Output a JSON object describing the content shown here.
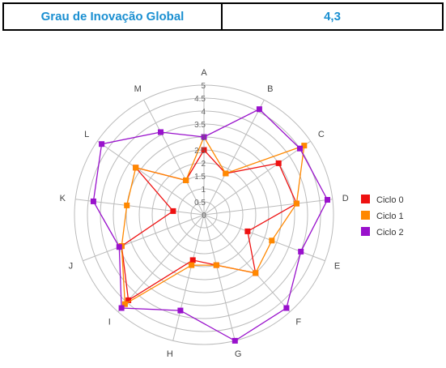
{
  "header": {
    "label": "Grau de Inovação Global",
    "value": "4,3"
  },
  "colors": {
    "header_text": "#1a8fd1",
    "grid": "#bbbbbb"
  },
  "chart_data": {
    "type": "radar",
    "categories": [
      "A",
      "B",
      "C",
      "D",
      "E",
      "F",
      "G",
      "H",
      "I",
      "J",
      "K",
      "L",
      "M"
    ],
    "ticks": [
      "0",
      "0.5",
      "1",
      "1.5",
      "2",
      "2.5",
      "3",
      "3.5",
      "4",
      "4.5",
      "5"
    ],
    "rmax": 5,
    "legend_position": "right",
    "series": [
      {
        "name": "Ciclo 0",
        "color": "#ee1111",
        "values": [
          2.5,
          1.8,
          3.5,
          3.6,
          1.8,
          3.0,
          2.0,
          1.8,
          4.4,
          3.4,
          1.2,
          3.2,
          1.5
        ]
      },
      {
        "name": "Ciclo 1",
        "color": "#ff8800",
        "values": [
          3.0,
          1.8,
          4.7,
          3.6,
          2.8,
          3.0,
          2.0,
          2.0,
          4.6,
          3.4,
          3.0,
          3.2,
          1.5
        ]
      },
      {
        "name": "Ciclo 2",
        "color": "#9911cc",
        "values": [
          3.0,
          4.6,
          4.5,
          4.8,
          4.0,
          4.8,
          5.0,
          3.8,
          4.8,
          3.5,
          4.3,
          4.8,
          3.6
        ]
      }
    ]
  }
}
